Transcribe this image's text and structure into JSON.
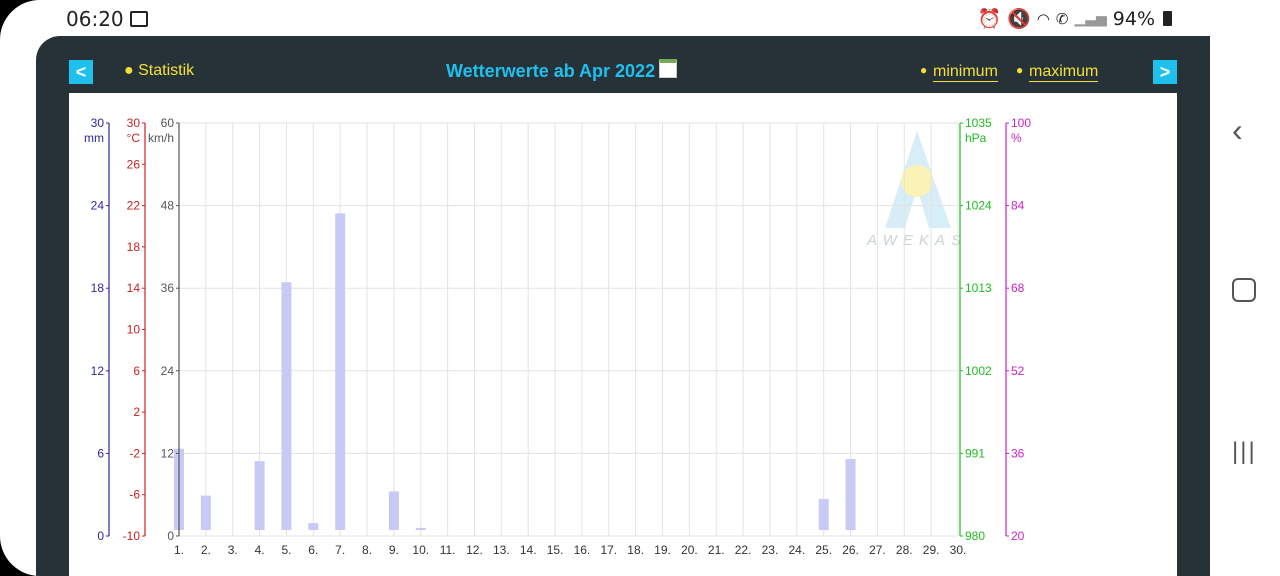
{
  "status_bar": {
    "time": "06:20",
    "battery": "94%",
    "icons": [
      "gallery-icon",
      "alarm-icon",
      "mute-icon",
      "wifi-icon",
      "call-icon",
      "signal-icon",
      "battery-icon"
    ]
  },
  "header": {
    "title": "Wetterwerte ab Apr 2022",
    "statistik_label": "Statistik",
    "minimum_label": "minimum",
    "maximum_label": "maximum",
    "prev_label": "<",
    "next_label": ">"
  },
  "watermark": {
    "text": "AWEKAS"
  },
  "chart_data": {
    "type": "bar",
    "categories": [
      "1.",
      "2.",
      "3.",
      "4.",
      "5.",
      "6.",
      "7.",
      "8.",
      "9.",
      "10.",
      "11.",
      "12.",
      "13.",
      "14.",
      "15.",
      "16.",
      "17.",
      "18.",
      "19.",
      "20.",
      "21.",
      "22.",
      "23.",
      "24.",
      "25.",
      "26.",
      "27.",
      "28.",
      "29.",
      "30."
    ],
    "series": [
      {
        "values": [
          11.8,
          5.0,
          0,
          10.0,
          36.0,
          1.0,
          46.0,
          0,
          5.6,
          0.3,
          0,
          0,
          0,
          0,
          0,
          0,
          0,
          0,
          0,
          0,
          0,
          0,
          0,
          0,
          4.5,
          10.3,
          0,
          0,
          0,
          0
        ],
        "color": "#c8caf5"
      }
    ],
    "axes": {
      "rain": {
        "unit": "mm",
        "ticks": [
          "0",
          "6",
          "12",
          "18",
          "24",
          "30"
        ],
        "range": [
          0,
          30
        ],
        "color": "#2a2a9c"
      },
      "temp": {
        "unit": "°C",
        "ticks": [
          "-10",
          "-6",
          "-2",
          "2",
          "6",
          "10",
          "14",
          "18",
          "22",
          "26",
          "30"
        ],
        "range": [
          -10,
          30
        ],
        "color": "#cc2222"
      },
      "wind": {
        "unit": "km/h",
        "ticks": [
          "0",
          "12",
          "24",
          "36",
          "48",
          "60"
        ],
        "range": [
          0,
          60
        ],
        "color": "#555555"
      },
      "pressure": {
        "unit": "hPa",
        "ticks": [
          "980",
          "991",
          "1002",
          "1013",
          "1024",
          "1035"
        ],
        "range": [
          980,
          1035
        ],
        "color": "#22bb22"
      },
      "humidity": {
        "unit": "%",
        "ticks": [
          "20",
          "36",
          "52",
          "68",
          "84",
          "100"
        ],
        "range": [
          20,
          100
        ],
        "color": "#cc22cc"
      }
    },
    "grid": true
  }
}
